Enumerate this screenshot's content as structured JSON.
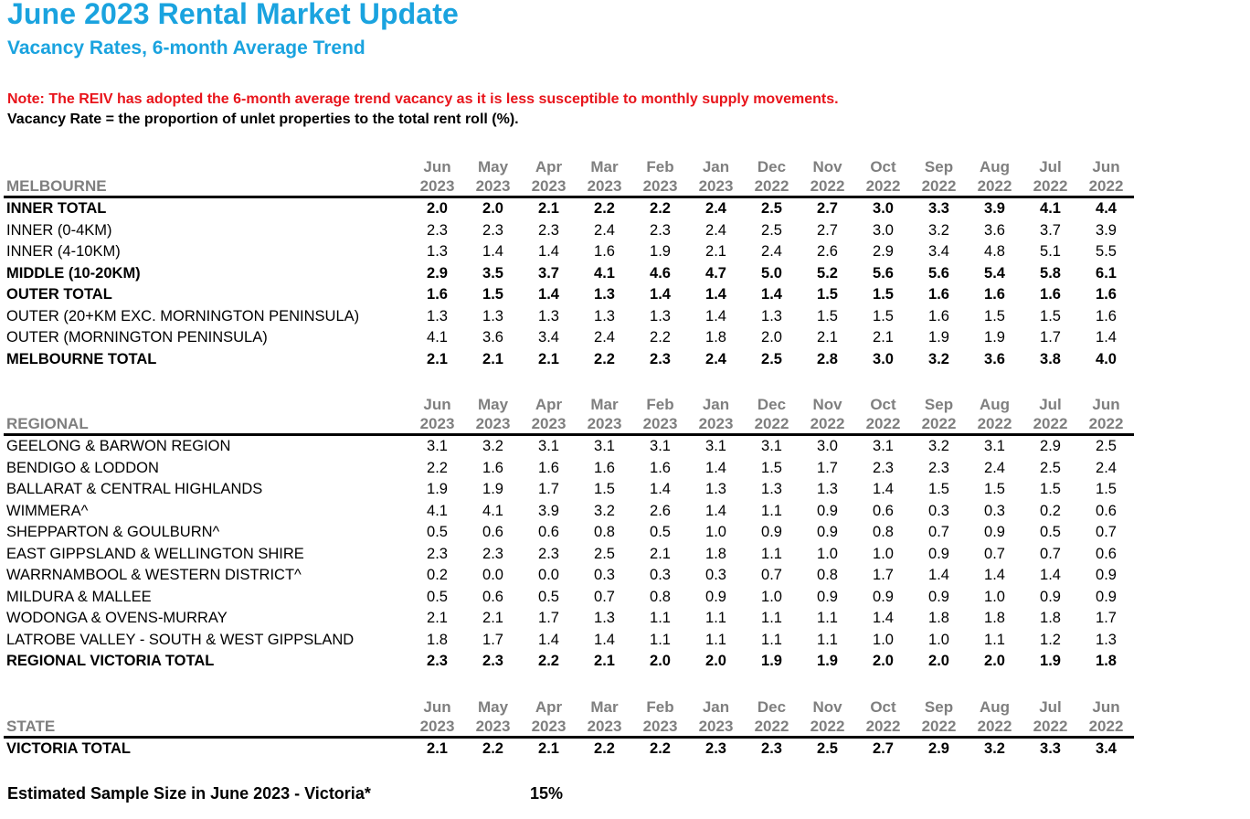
{
  "title": "June 2023 Rental Market Update",
  "subtitle": "Vacancy Rates, 6-month Average Trend",
  "note": "Note: The REIV has adopted the 6-month average trend vacancy as it is less susceptible to monthly supply movements.",
  "definition": "Vacancy Rate = the proportion of unlet properties to the total rent roll (%).",
  "periods": [
    {
      "month": "Jun",
      "year": "2023"
    },
    {
      "month": "May",
      "year": "2023"
    },
    {
      "month": "Apr",
      "year": "2023"
    },
    {
      "month": "Mar",
      "year": "2023"
    },
    {
      "month": "Feb",
      "year": "2023"
    },
    {
      "month": "Jan",
      "year": "2023"
    },
    {
      "month": "Dec",
      "year": "2022"
    },
    {
      "month": "Nov",
      "year": "2022"
    },
    {
      "month": "Oct",
      "year": "2022"
    },
    {
      "month": "Sep",
      "year": "2022"
    },
    {
      "month": "Aug",
      "year": "2022"
    },
    {
      "month": "Jul",
      "year": "2022"
    },
    {
      "month": "Jun",
      "year": "2022"
    }
  ],
  "sections": [
    {
      "name": "MELBOURNE",
      "rows": [
        {
          "label": "INNER TOTAL",
          "bold": true,
          "values": [
            "2.0",
            "2.0",
            "2.1",
            "2.2",
            "2.2",
            "2.4",
            "2.5",
            "2.7",
            "3.0",
            "3.3",
            "3.9",
            "4.1",
            "4.4"
          ]
        },
        {
          "label": "INNER (0-4KM)",
          "bold": false,
          "values": [
            "2.3",
            "2.3",
            "2.3",
            "2.4",
            "2.3",
            "2.4",
            "2.5",
            "2.7",
            "3.0",
            "3.2",
            "3.6",
            "3.7",
            "3.9"
          ]
        },
        {
          "label": "INNER (4-10KM)",
          "bold": false,
          "values": [
            "1.3",
            "1.4",
            "1.4",
            "1.6",
            "1.9",
            "2.1",
            "2.4",
            "2.6",
            "2.9",
            "3.4",
            "4.8",
            "5.1",
            "5.5"
          ]
        },
        {
          "label": "MIDDLE (10-20KM)",
          "bold": true,
          "values": [
            "2.9",
            "3.5",
            "3.7",
            "4.1",
            "4.6",
            "4.7",
            "5.0",
            "5.2",
            "5.6",
            "5.6",
            "5.4",
            "5.8",
            "6.1"
          ]
        },
        {
          "label": "OUTER TOTAL",
          "bold": true,
          "values": [
            "1.6",
            "1.5",
            "1.4",
            "1.3",
            "1.4",
            "1.4",
            "1.4",
            "1.5",
            "1.5",
            "1.6",
            "1.6",
            "1.6",
            "1.6"
          ]
        },
        {
          "label": "OUTER (20+KM EXC. MORNINGTON PENINSULA)",
          "bold": false,
          "values": [
            "1.3",
            "1.3",
            "1.3",
            "1.3",
            "1.3",
            "1.4",
            "1.3",
            "1.5",
            "1.5",
            "1.6",
            "1.5",
            "1.5",
            "1.6"
          ]
        },
        {
          "label": "OUTER (MORNINGTON PENINSULA)",
          "bold": false,
          "values": [
            "4.1",
            "3.6",
            "3.4",
            "2.4",
            "2.2",
            "1.8",
            "2.0",
            "2.1",
            "2.1",
            "1.9",
            "1.9",
            "1.7",
            "1.4"
          ]
        },
        {
          "label": "MELBOURNE TOTAL",
          "bold": true,
          "values": [
            "2.1",
            "2.1",
            "2.1",
            "2.2",
            "2.3",
            "2.4",
            "2.5",
            "2.8",
            "3.0",
            "3.2",
            "3.6",
            "3.8",
            "4.0"
          ]
        }
      ]
    },
    {
      "name": "REGIONAL",
      "rows": [
        {
          "label": "GEELONG & BARWON REGION",
          "bold": false,
          "values": [
            "3.1",
            "3.2",
            "3.1",
            "3.1",
            "3.1",
            "3.1",
            "3.1",
            "3.0",
            "3.1",
            "3.2",
            "3.1",
            "2.9",
            "2.5"
          ]
        },
        {
          "label": "BENDIGO & LODDON",
          "bold": false,
          "values": [
            "2.2",
            "1.6",
            "1.6",
            "1.6",
            "1.6",
            "1.4",
            "1.5",
            "1.7",
            "2.3",
            "2.3",
            "2.4",
            "2.5",
            "2.4"
          ]
        },
        {
          "label": "BALLARAT & CENTRAL HIGHLANDS",
          "bold": false,
          "values": [
            "1.9",
            "1.9",
            "1.7",
            "1.5",
            "1.4",
            "1.3",
            "1.3",
            "1.3",
            "1.4",
            "1.5",
            "1.5",
            "1.5",
            "1.5"
          ]
        },
        {
          "label": "WIMMERA^",
          "bold": false,
          "values": [
            "4.1",
            "4.1",
            "3.9",
            "3.2",
            "2.6",
            "1.4",
            "1.1",
            "0.9",
            "0.6",
            "0.3",
            "0.3",
            "0.2",
            "0.6"
          ]
        },
        {
          "label": "SHEPPARTON & GOULBURN^",
          "bold": false,
          "values": [
            "0.5",
            "0.6",
            "0.6",
            "0.8",
            "0.5",
            "1.0",
            "0.9",
            "0.9",
            "0.8",
            "0.7",
            "0.9",
            "0.5",
            "0.7"
          ]
        },
        {
          "label": "EAST GIPPSLAND & WELLINGTON SHIRE",
          "bold": false,
          "values": [
            "2.3",
            "2.3",
            "2.3",
            "2.5",
            "2.1",
            "1.8",
            "1.1",
            "1.0",
            "1.0",
            "0.9",
            "0.7",
            "0.7",
            "0.6"
          ]
        },
        {
          "label": "WARRNAMBOOL & WESTERN DISTRICT^",
          "bold": false,
          "values": [
            "0.2",
            "0.0",
            "0.0",
            "0.3",
            "0.3",
            "0.3",
            "0.7",
            "0.8",
            "1.7",
            "1.4",
            "1.4",
            "1.4",
            "0.9"
          ]
        },
        {
          "label": "MILDURA & MALLEE",
          "bold": false,
          "values": [
            "0.5",
            "0.6",
            "0.5",
            "0.7",
            "0.8",
            "0.9",
            "1.0",
            "0.9",
            "0.9",
            "0.9",
            "1.0",
            "0.9",
            "0.9"
          ]
        },
        {
          "label": "WODONGA & OVENS-MURRAY",
          "bold": false,
          "values": [
            "2.1",
            "2.1",
            "1.7",
            "1.3",
            "1.1",
            "1.1",
            "1.1",
            "1.1",
            "1.4",
            "1.8",
            "1.8",
            "1.8",
            "1.7"
          ]
        },
        {
          "label": "LATROBE VALLEY - SOUTH & WEST GIPPSLAND",
          "bold": false,
          "values": [
            "1.8",
            "1.7",
            "1.4",
            "1.4",
            "1.1",
            "1.1",
            "1.1",
            "1.1",
            "1.0",
            "1.0",
            "1.1",
            "1.2",
            "1.3"
          ]
        },
        {
          "label": "REGIONAL VICTORIA TOTAL",
          "bold": true,
          "values": [
            "2.3",
            "2.3",
            "2.2",
            "2.1",
            "2.0",
            "2.0",
            "1.9",
            "1.9",
            "2.0",
            "2.0",
            "2.0",
            "1.9",
            "1.8"
          ]
        }
      ]
    },
    {
      "name": "STATE",
      "rows": [
        {
          "label": "VICTORIA TOTAL",
          "bold": true,
          "values": [
            "2.1",
            "2.2",
            "2.1",
            "2.2",
            "2.2",
            "2.3",
            "2.3",
            "2.5",
            "2.7",
            "2.9",
            "3.2",
            "3.3",
            "3.4"
          ]
        }
      ]
    }
  ],
  "sample": {
    "label": "Estimated Sample Size in June 2023 - Victoria*",
    "value": "15%"
  }
}
